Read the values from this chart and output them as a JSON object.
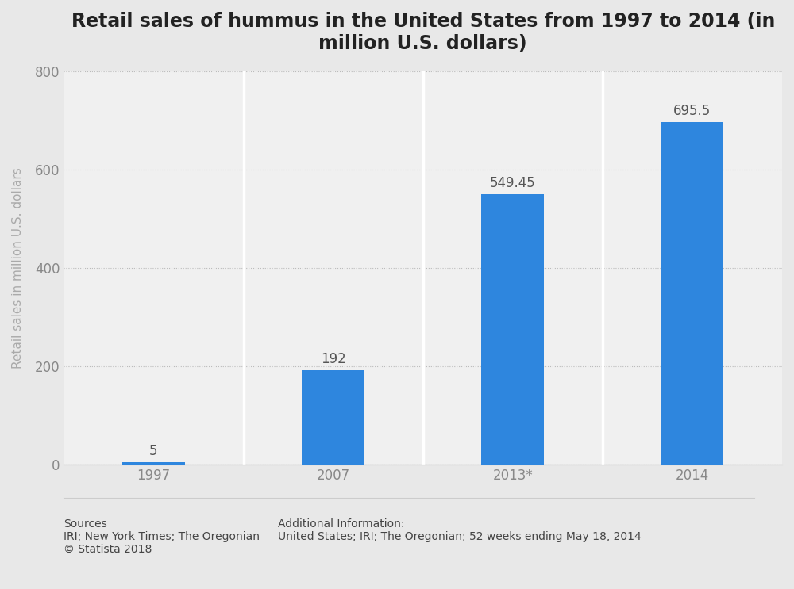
{
  "title": "Retail sales of hummus in the United States from 1997 to 2014 (in\nmillion U.S. dollars)",
  "categories": [
    "1997",
    "2007",
    "2013*",
    "2014"
  ],
  "values": [
    5,
    192,
    549.45,
    695.5
  ],
  "labels": [
    "5",
    "192",
    "549.45",
    "695.5"
  ],
  "bar_color": "#2E86DE",
  "background_color": "#e8e8e8",
  "plot_bg_color": "#e8e8e8",
  "col_bg_color": "#f0f0f0",
  "ylabel": "Retail sales in million U.S. dollars",
  "ylim": [
    0,
    800
  ],
  "yticks": [
    0,
    200,
    400,
    600,
    800
  ],
  "title_fontsize": 17,
  "axis_label_fontsize": 11,
  "tick_fontsize": 12,
  "annotation_fontsize": 12,
  "sources_text": "Sources\nIRI; New York Times; The Oregonian\n© Statista 2018",
  "additional_text": "Additional Information:\nUnited States; IRI; The Oregonian; 52 weeks ending May 18, 2014",
  "footer_fontsize": 10
}
